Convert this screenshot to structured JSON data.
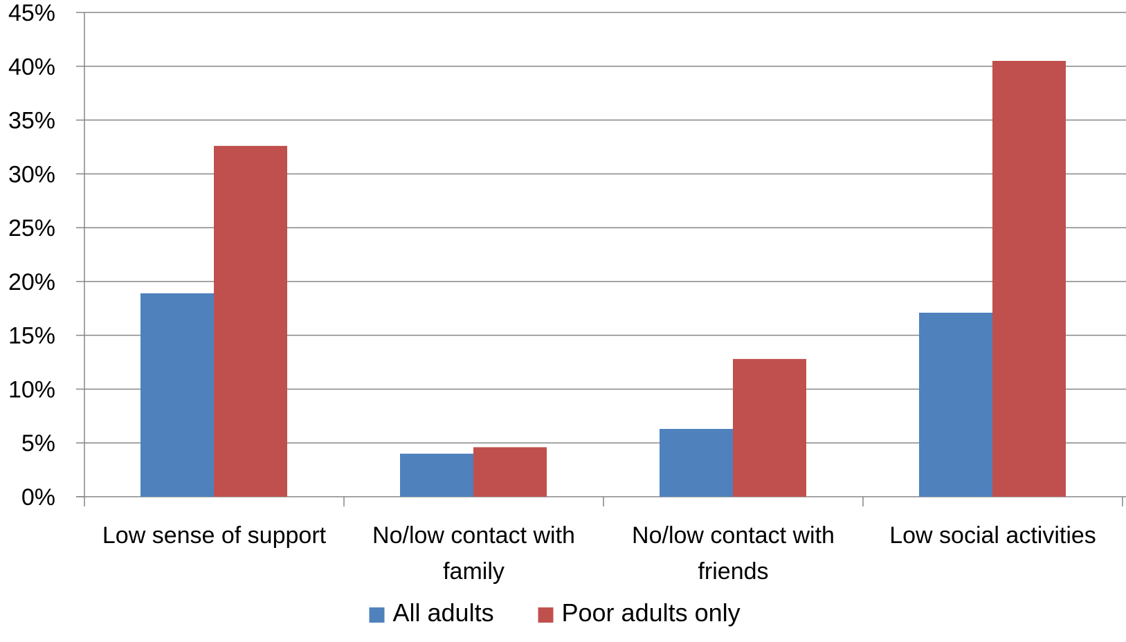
{
  "chart_data": {
    "type": "bar",
    "categories": [
      [
        "Low sense of support"
      ],
      [
        "No/low contact with",
        "family"
      ],
      [
        "No/low contact with",
        "friends"
      ],
      [
        "Low social activities"
      ]
    ],
    "series": [
      {
        "name": "All adults",
        "color": "#4F81BD",
        "values": [
          18.9,
          4.0,
          6.3,
          17.1
        ]
      },
      {
        "name": "Poor adults only",
        "color": "#C0504D",
        "values": [
          32.6,
          4.6,
          12.8,
          40.5
        ]
      }
    ],
    "ylim": [
      0,
      45
    ],
    "y_ticks": [
      0,
      5,
      10,
      15,
      20,
      25,
      30,
      35,
      40,
      45
    ],
    "y_tick_labels": [
      "0%",
      "5%",
      "10%",
      "15%",
      "20%",
      "25%",
      "30%",
      "35%",
      "40%",
      "45%"
    ],
    "grid": true,
    "legend_position": "bottom",
    "title": "",
    "xlabel": "",
    "ylabel": "",
    "gridline_color": "#868686"
  }
}
